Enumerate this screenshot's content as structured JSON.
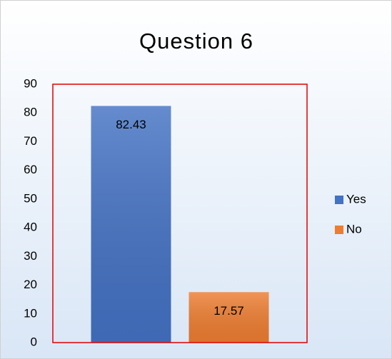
{
  "chart_data": {
    "type": "bar",
    "title": "Question 6",
    "categories": [
      null
    ],
    "series": [
      {
        "name": "Yes",
        "color": "#4472c4",
        "values": [
          82.43
        ]
      },
      {
        "name": "No",
        "color": "#ed7d31",
        "values": [
          17.57
        ]
      }
    ],
    "ylim": [
      0,
      90
    ],
    "yticks": [
      0,
      10,
      20,
      30,
      40,
      50,
      60,
      70,
      80,
      90
    ],
    "grid": false,
    "legend": "right"
  }
}
